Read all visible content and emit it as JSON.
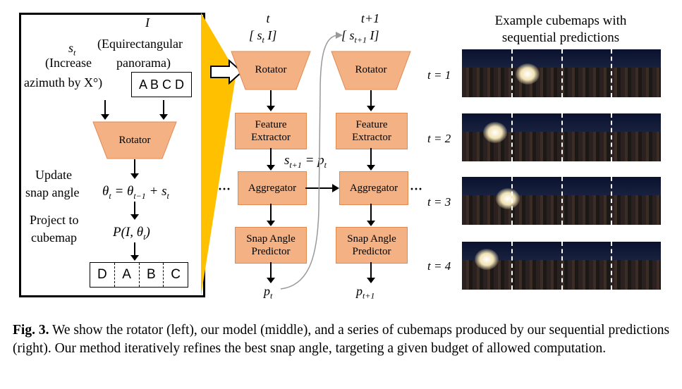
{
  "left_panel": {
    "label_I": "I",
    "label_st": "s",
    "label_st_sub": "t",
    "increase_line1": "(Increase",
    "increase_line2": "azimuth by X°)",
    "equirect_line1": "(Equirectangular",
    "equirect_line2": "panorama)",
    "abcd": "A B C D",
    "rotator": "Rotator",
    "update_line1": "Update",
    "update_line2": "snap angle",
    "update_formula": "θt = θt−1 + st",
    "project_line1": "Project to",
    "project_line2": "cubemap",
    "project_formula": "P(I, θt)",
    "cubemap_faces": [
      "D",
      "A",
      "B",
      "C"
    ]
  },
  "column_t": {
    "time": "t",
    "input": "[ st I]",
    "rotator": "Rotator",
    "feature_line1": "Feature",
    "feature_line2": "Extractor",
    "aggregator": "Aggregator",
    "snap_line1": "Snap Angle",
    "snap_line2": "Predictor",
    "output": "pt"
  },
  "column_t1": {
    "time": "t+1",
    "input": "[ st+1 I]",
    "rotator": "Rotator",
    "feature_line1": "Feature",
    "feature_line2": "Extractor",
    "aggregator": "Aggregator",
    "snap_line1": "Snap Angle",
    "snap_line2": "Predictor",
    "output": "pt+1"
  },
  "relation": "st+1 = pt",
  "ellipsis": "···",
  "examples": {
    "title_line1": "Example cubemaps with",
    "title_line2": "sequential predictions",
    "rows": [
      "t = 1",
      "t = 2",
      "t = 3",
      "t = 4"
    ]
  },
  "caption": {
    "label": "Fig. 3.",
    "text": " We show the rotator (left), our model (middle), and a series of cubemaps produced by our sequential predictions (right). Our method iteratively refines the best snap angle, targeting a given budget of allowed computation."
  },
  "colors": {
    "box_fill": "#f4b183",
    "highlight": "#ffc000"
  }
}
